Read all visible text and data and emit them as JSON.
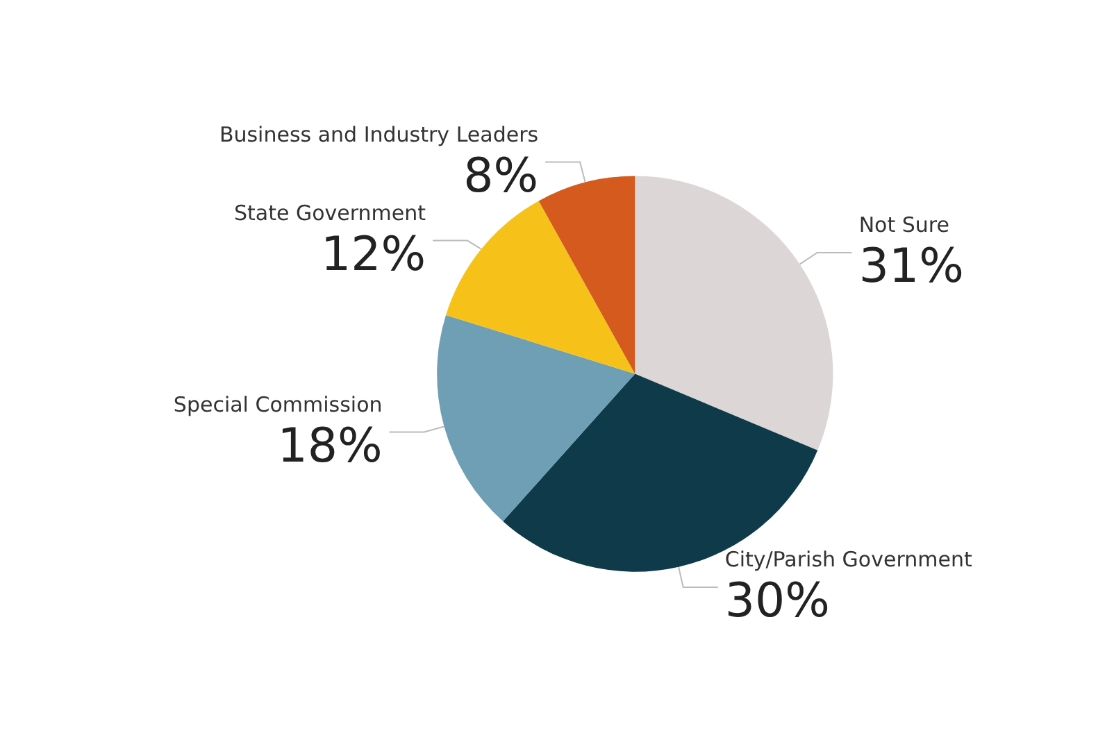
{
  "chart_data": {
    "type": "pie",
    "categories": [
      "Not Sure",
      "City/Parish Government",
      "Special Commission",
      "State Government",
      "Business and Industry Leaders"
    ],
    "values": [
      31,
      30,
      18,
      12,
      8
    ],
    "value_labels": [
      "31%",
      "30%",
      "18%",
      "12%",
      "8%"
    ],
    "colors": [
      "#dcd6d6",
      "#0f3a4a",
      "#6e9fb5",
      "#f6c21a",
      "#d45a1e"
    ],
    "legend": false
  }
}
